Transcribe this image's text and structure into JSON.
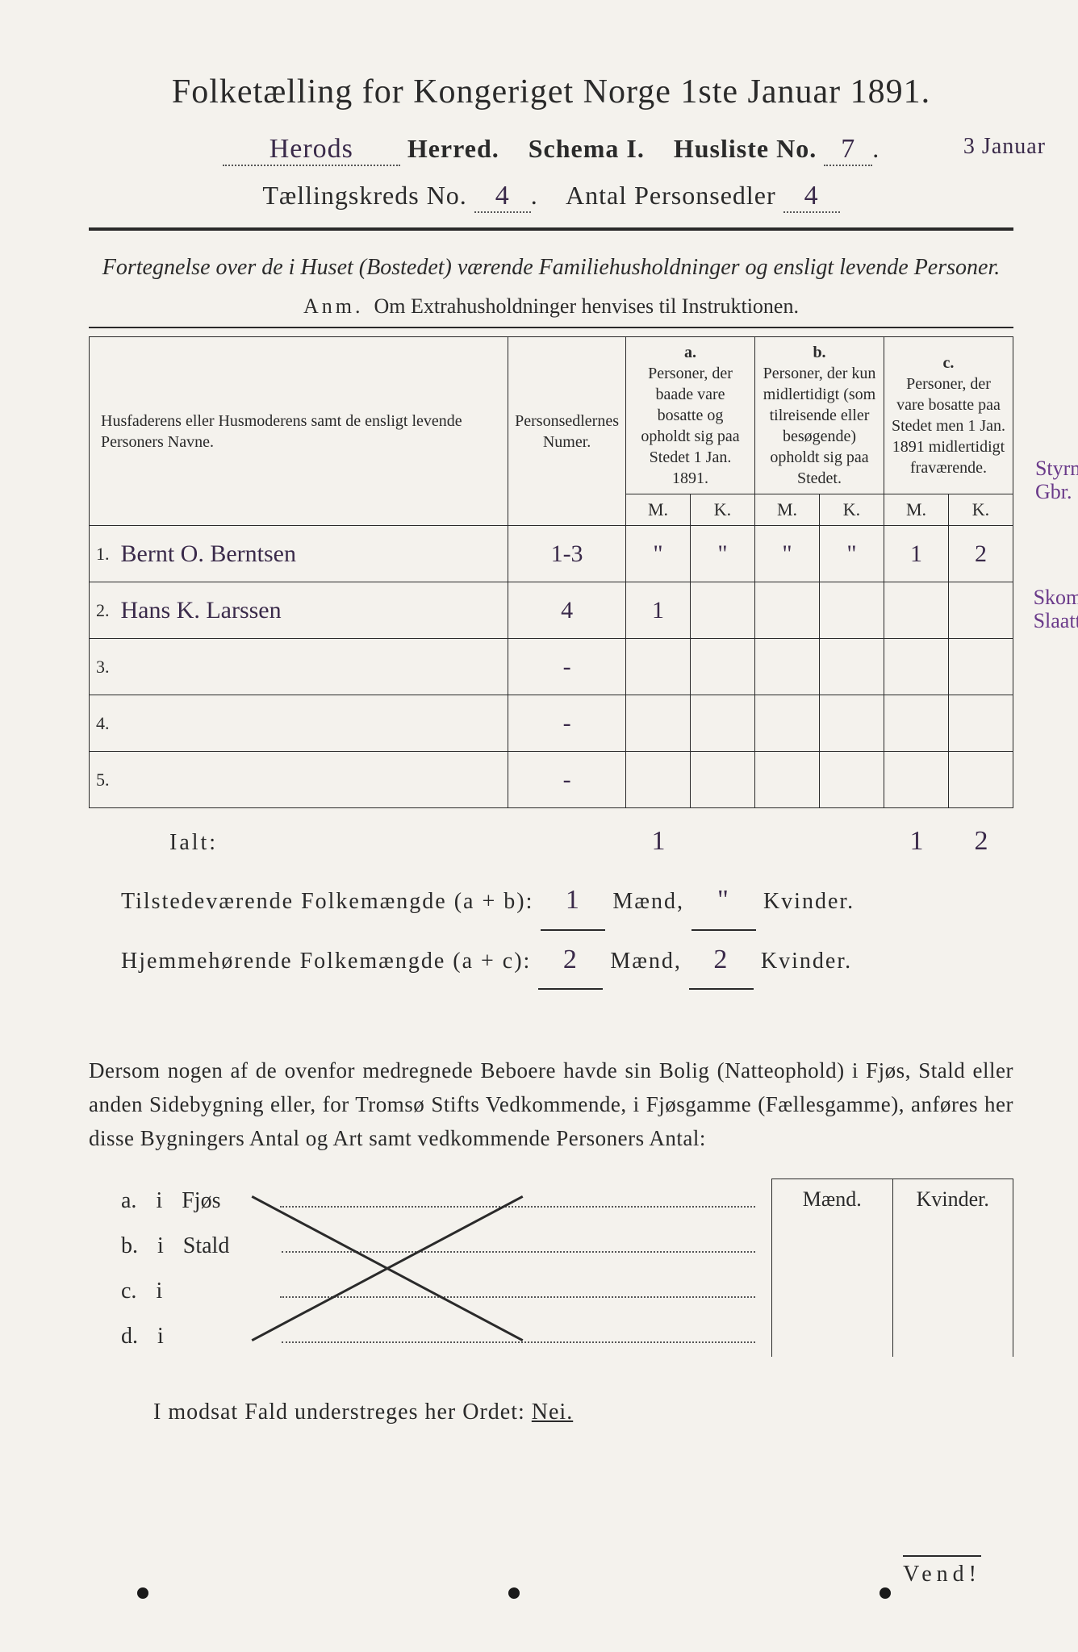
{
  "title": "Folketælling for Kongeriget Norge 1ste Januar 1891.",
  "header": {
    "herred_value": "Herods",
    "herred_label": "Herred.",
    "schema_label": "Schema I.",
    "husliste_label": "Husliste No.",
    "husliste_no": "7",
    "date_margin": "3 Januar",
    "kreds_label": "Tællingskreds No.",
    "kreds_no": "4",
    "antal_label": "Antal Personsedler",
    "antal_no": "4"
  },
  "subtitle": "Fortegnelse over de i Huset (Bostedet) værende Familiehusholdninger og ensligt levende Personer.",
  "anm_label": "Anm.",
  "anm_text": "Om Extrahusholdninger henvises til Instruktionen.",
  "table": {
    "col1": "Husfaderens eller Husmoderens samt de ensligt levende Personers Navne.",
    "col2": "Personsedlernes Numer.",
    "a_label": "a.",
    "a_text": "Personer, der baade vare bosatte og opholdt sig paa Stedet 1 Jan. 1891.",
    "b_label": "b.",
    "b_text": "Personer, der kun midlertidigt (som tilreisende eller besøgende) opholdt sig paa Stedet.",
    "c_label": "c.",
    "c_text": "Personer, der vare bosatte paa Stedet men 1 Jan. 1891 midlertidigt fraværende.",
    "m": "M.",
    "k": "K.",
    "rows": [
      {
        "n": "1.",
        "name": "Bernt O. Berntsen",
        "num": "1-3",
        "aM": "\"",
        "aK": "\"",
        "bM": "\"",
        "bK": "\"",
        "cM": "1",
        "cK": "2"
      },
      {
        "n": "2.",
        "name": "Hans K. Larssen",
        "num": "4",
        "aM": "1",
        "aK": "",
        "bM": "",
        "bK": "",
        "cM": "",
        "cK": ""
      },
      {
        "n": "3.",
        "name": "",
        "num": "-",
        "aM": "",
        "aK": "",
        "bM": "",
        "bK": "",
        "cM": "",
        "cK": ""
      },
      {
        "n": "4.",
        "name": "",
        "num": "-",
        "aM": "",
        "aK": "",
        "bM": "",
        "bK": "",
        "cM": "",
        "cK": ""
      },
      {
        "n": "5.",
        "name": "",
        "num": "-",
        "aM": "",
        "aK": "",
        "bM": "",
        "bK": "",
        "cM": "",
        "cK": ""
      }
    ],
    "margin_notes": {
      "top": "Styrmand\nGbr. Selv.",
      "row2": "Skomager\nSlaattem."
    }
  },
  "ialt": {
    "label": "Ialt:",
    "aM": "1",
    "aK": "",
    "bM": "",
    "bK": "",
    "cM": "1",
    "cK": "2"
  },
  "summary": {
    "line1_a": "Tilstedeværende Folkemængde (a + b):",
    "line1_m": "1",
    "line1_mlabel": "Mænd,",
    "line1_k": "\"",
    "line1_klabel": "Kvinder.",
    "line2_a": "Hjemmehørende Folkemængde (a + c):",
    "line2_m": "2",
    "line2_k": "2"
  },
  "paragraph": "Dersom nogen af de ovenfor medregnede Beboere havde sin Bolig (Natteophold) i Fjøs, Stald eller anden Sidebygning eller, for Tromsø Stifts Vedkommende, i Fjøsgamme (Fællesgamme), anføres her disse Bygningers Antal og Art samt vedkommende Personers Antal:",
  "bottom": {
    "maend": "Mænd.",
    "kvinder": "Kvinder.",
    "rows": [
      {
        "k": "a.",
        "i": "i",
        "label": "Fjøs"
      },
      {
        "k": "b.",
        "i": "i",
        "label": "Stald"
      },
      {
        "k": "c.",
        "i": "i",
        "label": ""
      },
      {
        "k": "d.",
        "i": "i",
        "label": ""
      }
    ]
  },
  "nei_line_a": "I modsat Fald understreges her Ordet:",
  "nei_line_b": "Nei.",
  "vend": "Vend!",
  "colors": {
    "paper": "#f4f2ed",
    "ink": "#2a2a2a",
    "purple_ink": "#6a3a8a"
  }
}
